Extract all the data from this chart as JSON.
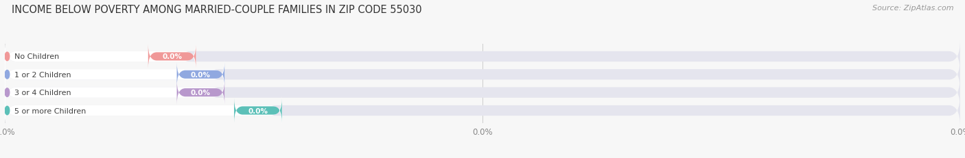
{
  "title": "INCOME BELOW POVERTY AMONG MARRIED-COUPLE FAMILIES IN ZIP CODE 55030",
  "source": "Source: ZipAtlas.com",
  "categories": [
    "No Children",
    "1 or 2 Children",
    "3 or 4 Children",
    "5 or more Children"
  ],
  "values": [
    0.0,
    0.0,
    0.0,
    0.0
  ],
  "bar_colors": [
    "#f09898",
    "#90a8e0",
    "#b898cc",
    "#5cc0b8"
  ],
  "background_color": "#f7f7f7",
  "bar_bg_color": "#e5e5ee",
  "title_fontsize": 10.5,
  "source_fontsize": 8,
  "figsize": [
    14.06,
    2.32
  ]
}
